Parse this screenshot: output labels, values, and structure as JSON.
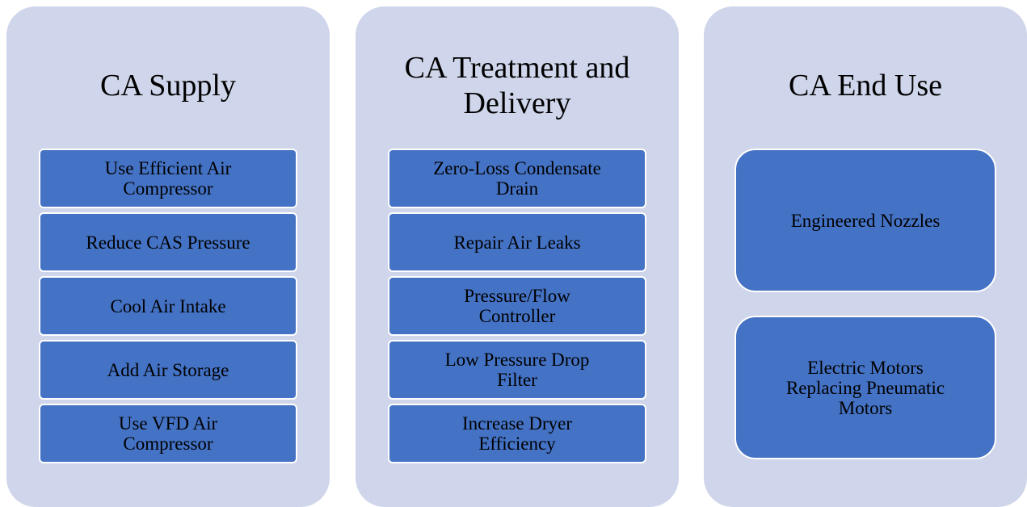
{
  "columns": [
    {
      "title": "CA Supply",
      "items": [
        "Use Efficient Air Compressor",
        "Reduce CAS Pressure",
        "Cool Air Intake",
        "Add Air Storage",
        "Use VFD Air Compressor"
      ]
    },
    {
      "title": "CA Treatment and Delivery",
      "items": [
        "Zero-Loss Condensate Drain",
        "Repair Air Leaks",
        "Pressure/Flow Controller",
        "Low Pressure Drop Filter",
        "Increase Dryer Efficiency"
      ]
    },
    {
      "title": "CA End Use",
      "items": [
        "Engineered Nozzles",
        "Electric Motors Replacing Pneumatic Motors"
      ]
    }
  ]
}
